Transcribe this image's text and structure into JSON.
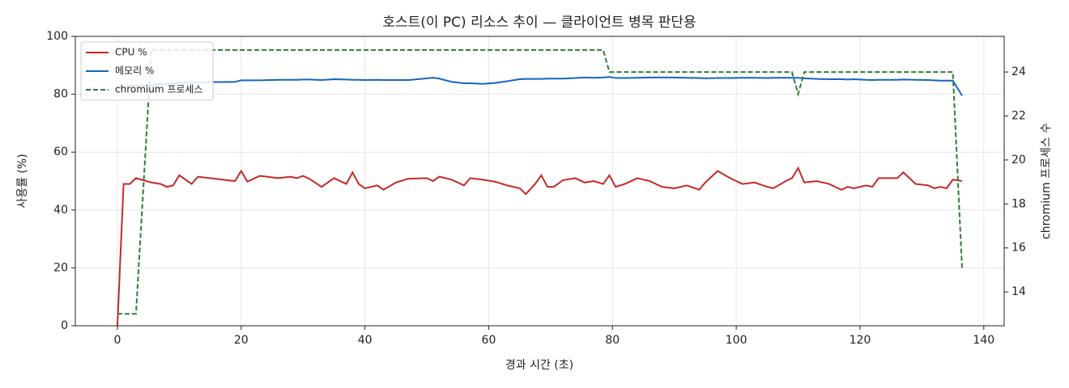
{
  "chart_data": {
    "type": "line",
    "title": "호스트(이 PC) 리소스 추이 — 클라이언트 병목 판단용",
    "xlabel": "경과 시간 (초)",
    "ylabel": "사용률 (%)",
    "y2label": "chromium 프로세스 수",
    "x": [
      0,
      1,
      2,
      3,
      5.5,
      7,
      8,
      9,
      10,
      12,
      13,
      15,
      17,
      19,
      20,
      21,
      23,
      26,
      28,
      29,
      30,
      31,
      33,
      35,
      37,
      38,
      39,
      40,
      42,
      43,
      45,
      47,
      50,
      51,
      52,
      54,
      56,
      57,
      59,
      61,
      63,
      65,
      66,
      67.5,
      68.5,
      69.5,
      70.5,
      72,
      74,
      75.5,
      77,
      78.5,
      79.5,
      80.5,
      82,
      84,
      86,
      88,
      90,
      92,
      94,
      95,
      97,
      99,
      101,
      103,
      105,
      106,
      108,
      109,
      110,
      111,
      113,
      115,
      117,
      118,
      119,
      121,
      122,
      123,
      125,
      126,
      127,
      129,
      131,
      132,
      133,
      134,
      135,
      136.5
    ],
    "series": [
      {
        "name": "CPU %",
        "color": "#c62828",
        "style": "solid",
        "axis": "y",
        "values": [
          0,
          49,
          49,
          51,
          49.5,
          49,
          48,
          48.5,
          52,
          49,
          51.5,
          51,
          50.5,
          50,
          53.5,
          49.8,
          51.8,
          51,
          51.5,
          51,
          51.8,
          50.8,
          48,
          51,
          49,
          53,
          49,
          47.5,
          48.5,
          47,
          49.5,
          50.8,
          51,
          50,
          51.5,
          50.5,
          48.5,
          51,
          50.5,
          49.8,
          48.5,
          47.5,
          45.5,
          49,
          52,
          48,
          48,
          50.3,
          51,
          49.5,
          50,
          49,
          52,
          48,
          49,
          51,
          50,
          48,
          47.5,
          48.5,
          47,
          49.5,
          53.5,
          51,
          49,
          49.5,
          48,
          47.5,
          50,
          51,
          54.5,
          49.5,
          50,
          49,
          47,
          48,
          47.5,
          48.5,
          48,
          51,
          51,
          51,
          53,
          49,
          48.5,
          47.5,
          48,
          47.5,
          50.5,
          50
        ]
      },
      {
        "name": "메모리 %",
        "color": "#1565c0",
        "style": "solid",
        "axis": "y",
        "values": [
          82,
          82.5,
          83,
          83,
          83.2,
          83.5,
          83.5,
          83.8,
          84,
          84,
          84,
          84.2,
          84.2,
          84.3,
          84.8,
          84.8,
          84.8,
          85,
          85,
          85,
          85.1,
          85.1,
          84.9,
          85.2,
          85.1,
          85,
          85,
          84.9,
          85,
          84.9,
          84.9,
          84.9,
          85.5,
          85.7,
          85.4,
          84.3,
          83.8,
          83.8,
          83.6,
          83.9,
          84.5,
          85.2,
          85.3,
          85.3,
          85.3,
          85.4,
          85.4,
          85.4,
          85.6,
          85.8,
          85.7,
          85.8,
          86,
          85.6,
          85.6,
          85.7,
          85.8,
          85.8,
          85.8,
          85.7,
          85.6,
          85.5,
          85.6,
          85.6,
          85.7,
          85.7,
          85.6,
          85.7,
          85.7,
          85.7,
          85.7,
          85.5,
          85.3,
          85.2,
          85.2,
          85.1,
          85.2,
          85,
          84.9,
          85,
          85,
          85,
          85.1,
          85,
          84.9,
          84.8,
          84.7,
          84.7,
          84.7,
          79.5
        ]
      },
      {
        "name": "chromium 프로세스",
        "color": "#2e7d32",
        "style": "dashed",
        "axis": "y2",
        "values": [
          13,
          13,
          13,
          13,
          25,
          25,
          25,
          25,
          25,
          25,
          25,
          25,
          25,
          25,
          25,
          25,
          25,
          25,
          25,
          25,
          25,
          25,
          25,
          25,
          25,
          25,
          25,
          25,
          25,
          25,
          25,
          25,
          25,
          25,
          25,
          25,
          25,
          25,
          25,
          25,
          25,
          25,
          25,
          25,
          25,
          25,
          25,
          25,
          25,
          25,
          25,
          25,
          24,
          24,
          24,
          24,
          24,
          24,
          24,
          24,
          24,
          24,
          24,
          24,
          24,
          24,
          24,
          24,
          24,
          24,
          23,
          24,
          24,
          24,
          24,
          24,
          24,
          24,
          24,
          24,
          24,
          24,
          24,
          24,
          24,
          24,
          24,
          24,
          24,
          15
        ]
      }
    ],
    "xlim": [
      -6.8,
      143.3
    ],
    "xticks": [
      0,
      20,
      40,
      60,
      80,
      100,
      120,
      140
    ],
    "ylim": [
      0,
      100
    ],
    "yticks": [
      0,
      20,
      40,
      60,
      80,
      100
    ],
    "y2lim": [
      12.46,
      25.62
    ],
    "y2ticks": [
      14,
      16,
      18,
      20,
      22,
      24
    ],
    "grid": true,
    "legend": "upper-left"
  }
}
